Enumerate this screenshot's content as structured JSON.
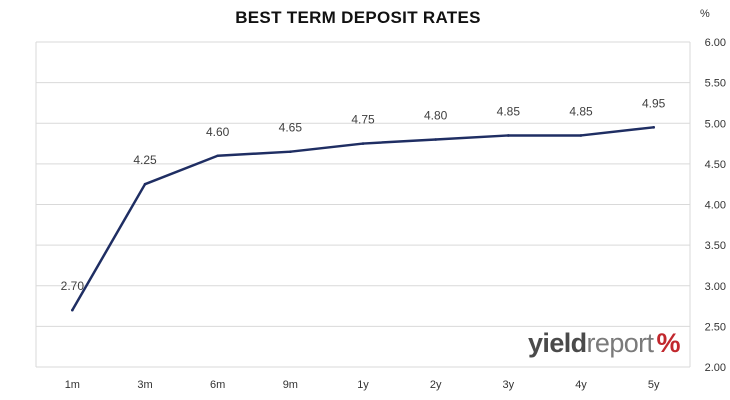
{
  "chart_data": {
    "type": "line",
    "title": "BEST TERM  DEPOSIT  RATES",
    "unit_label": "%",
    "categories": [
      "1m",
      "3m",
      "6m",
      "9m",
      "1y",
      "2y",
      "3y",
      "4y",
      "5y"
    ],
    "series": [
      {
        "values": [
          2.7,
          4.25,
          4.6,
          4.65,
          4.75,
          4.8,
          4.85,
          4.85,
          4.95
        ],
        "data_labels": [
          "2.70",
          "4.25",
          "4.60",
          "4.65",
          "4.75",
          "4.80",
          "4.85",
          "4.85",
          "4.95"
        ],
        "color": "#1f2e63"
      }
    ],
    "ylim": [
      2.0,
      6.0
    ],
    "yticks": [
      "2.00",
      "2.50",
      "3.00",
      "3.50",
      "4.00",
      "4.50",
      "5.00",
      "5.50",
      "6.00"
    ],
    "y_axis_position": "right",
    "grid": true,
    "legend": "none"
  },
  "branding": {
    "logo_yield": "yield",
    "logo_report": "report",
    "logo_percent": "%"
  },
  "colors": {
    "line": "#1f2e63",
    "grid": "#d9d9d9",
    "logo_red": "#c1272d",
    "logo_green": "#3a8a3a"
  }
}
